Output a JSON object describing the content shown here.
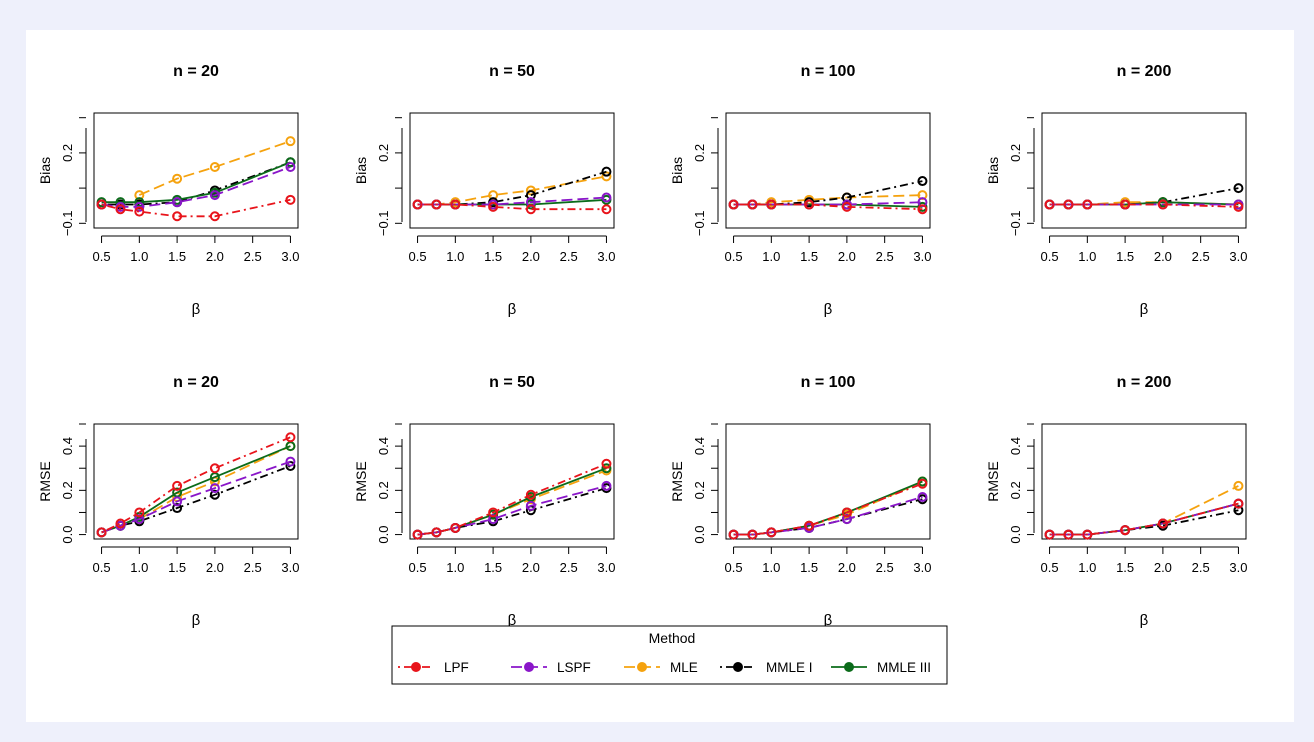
{
  "chart_data": {
    "type": "line",
    "rows": [
      {
        "metric": "Bias",
        "ylabel": "Bias",
        "yticks": [
          "−0.1",
          "0.2"
        ],
        "ytick_values": [
          -0.1,
          0.2
        ],
        "ylim": [
          -0.12,
          0.37
        ],
        "panels": [
          {
            "title": "n = 20",
            "series": [
              {
                "name": "LPF",
                "x": [
                  0.5,
                  0.75,
                  1.0,
                  1.5,
                  2.0,
                  3.0
                ],
                "y": [
                  -0.02,
                  -0.04,
                  -0.05,
                  -0.07,
                  -0.07,
                  0.0
                ]
              },
              {
                "name": "LSPF",
                "x": [
                  0.5,
                  0.75,
                  1.0,
                  1.5,
                  2.0,
                  3.0
                ],
                "y": [
                  -0.02,
                  -0.03,
                  -0.03,
                  -0.01,
                  0.02,
                  0.14
                ]
              },
              {
                "name": "MLE",
                "x": [
                  1.0,
                  1.5,
                  2.0,
                  3.0
                ],
                "y": [
                  0.02,
                  0.09,
                  0.14,
                  0.25
                ]
              },
              {
                "name": "MMLE I",
                "x": [
                  0.5,
                  0.75,
                  1.0,
                  1.5,
                  2.0,
                  3.0
                ],
                "y": [
                  -0.02,
                  -0.02,
                  -0.02,
                  -0.01,
                  0.04,
                  0.16
                ]
              },
              {
                "name": "MMLE III",
                "x": [
                  0.5,
                  0.75,
                  1.0,
                  1.5,
                  2.0,
                  3.0
                ],
                "y": [
                  -0.01,
                  -0.01,
                  -0.01,
                  0.0,
                  0.03,
                  0.16
                ]
              }
            ]
          },
          {
            "title": "n = 50",
            "series": [
              {
                "name": "LPF",
                "x": [
                  0.5,
                  0.75,
                  1.0,
                  1.5,
                  2.0,
                  3.0
                ],
                "y": [
                  -0.02,
                  -0.02,
                  -0.02,
                  -0.03,
                  -0.04,
                  -0.04
                ]
              },
              {
                "name": "LSPF",
                "x": [
                  0.5,
                  0.75,
                  1.0,
                  1.5,
                  2.0,
                  3.0
                ],
                "y": [
                  -0.02,
                  -0.02,
                  -0.02,
                  -0.02,
                  -0.01,
                  0.01
                ]
              },
              {
                "name": "MLE",
                "x": [
                  0.5,
                  0.75,
                  1.0,
                  1.5,
                  2.0,
                  3.0
                ],
                "y": [
                  -0.02,
                  -0.02,
                  -0.01,
                  0.02,
                  0.04,
                  0.1
                ]
              },
              {
                "name": "MMLE I",
                "x": [
                  0.5,
                  0.75,
                  1.0,
                  1.5,
                  2.0,
                  3.0
                ],
                "y": [
                  -0.02,
                  -0.02,
                  -0.02,
                  -0.01,
                  0.02,
                  0.12
                ]
              },
              {
                "name": "MMLE III",
                "x": [
                  0.5,
                  0.75,
                  1.0,
                  1.5,
                  2.0,
                  3.0
                ],
                "y": [
                  -0.02,
                  -0.02,
                  -0.02,
                  -0.02,
                  -0.02,
                  0.0
                ]
              }
            ]
          },
          {
            "title": "n = 100",
            "series": [
              {
                "name": "LPF",
                "x": [
                  0.5,
                  0.75,
                  1.0,
                  1.5,
                  2.0,
                  3.0
                ],
                "y": [
                  -0.02,
                  -0.02,
                  -0.02,
                  -0.02,
                  -0.03,
                  -0.04
                ]
              },
              {
                "name": "LSPF",
                "x": [
                  0.5,
                  0.75,
                  1.0,
                  1.5,
                  2.0,
                  3.0
                ],
                "y": [
                  -0.02,
                  -0.02,
                  -0.02,
                  -0.02,
                  -0.02,
                  -0.01
                ]
              },
              {
                "name": "MLE",
                "x": [
                  0.5,
                  0.75,
                  1.0,
                  1.5,
                  2.0,
                  3.0
                ],
                "y": [
                  -0.02,
                  -0.02,
                  -0.01,
                  0.0,
                  0.01,
                  0.02
                ]
              },
              {
                "name": "MMLE I",
                "x": [
                  0.5,
                  0.75,
                  1.0,
                  1.5,
                  2.0,
                  3.0
                ],
                "y": [
                  -0.02,
                  -0.02,
                  -0.02,
                  -0.01,
                  0.01,
                  0.08
                ]
              },
              {
                "name": "MMLE III",
                "x": [
                  0.5,
                  0.75,
                  1.0,
                  1.5,
                  2.0,
                  3.0
                ],
                "y": [
                  -0.02,
                  -0.02,
                  -0.02,
                  -0.02,
                  -0.02,
                  -0.03
                ]
              }
            ]
          },
          {
            "title": "n = 200",
            "series": [
              {
                "name": "LPF",
                "x": [
                  0.5,
                  0.75,
                  1.0,
                  1.5,
                  2.0,
                  3.0
                ],
                "y": [
                  -0.02,
                  -0.02,
                  -0.02,
                  -0.02,
                  -0.02,
                  -0.03
                ]
              },
              {
                "name": "LSPF",
                "x": [
                  0.5,
                  0.75,
                  1.0,
                  1.5,
                  2.0,
                  3.0
                ],
                "y": [
                  -0.02,
                  -0.02,
                  -0.02,
                  -0.02,
                  -0.02,
                  -0.02
                ]
              },
              {
                "name": "MLE",
                "x": [
                  0.5,
                  0.75,
                  1.0,
                  1.5,
                  2.0,
                  3.0
                ],
                "y": [
                  -0.02,
                  -0.02,
                  -0.02,
                  -0.01,
                  -0.01,
                  -0.02
                ]
              },
              {
                "name": "MMLE I",
                "x": [
                  0.5,
                  0.75,
                  1.0,
                  1.5,
                  2.0,
                  3.0
                ],
                "y": [
                  -0.02,
                  -0.02,
                  -0.02,
                  -0.02,
                  -0.01,
                  0.05
                ]
              },
              {
                "name": "MMLE III",
                "x": [
                  0.5,
                  0.75,
                  1.0,
                  1.5,
                  2.0,
                  3.0
                ],
                "y": [
                  -0.02,
                  -0.02,
                  -0.02,
                  -0.02,
                  -0.01,
                  -0.02
                ]
              }
            ]
          }
        ]
      },
      {
        "metric": "RMSE",
        "ylabel": "RMSE",
        "yticks": [
          "0.0",
          "0.2",
          "0.4"
        ],
        "ytick_values": [
          0.0,
          0.2,
          0.4
        ],
        "ylim": [
          -0.02,
          0.5
        ],
        "panels": [
          {
            "title": "n = 20",
            "series": [
              {
                "name": "LPF",
                "x": [
                  0.5,
                  0.75,
                  1.0,
                  1.5,
                  2.0,
                  3.0
                ],
                "y": [
                  0.01,
                  0.05,
                  0.1,
                  0.22,
                  0.3,
                  0.44
                ]
              },
              {
                "name": "LSPF",
                "x": [
                  0.5,
                  0.75,
                  1.0,
                  1.5,
                  2.0,
                  3.0
                ],
                "y": [
                  0.01,
                  0.04,
                  0.07,
                  0.15,
                  0.21,
                  0.33
                ]
              },
              {
                "name": "MLE",
                "x": [
                  1.0,
                  1.5,
                  2.0,
                  3.0
                ],
                "y": [
                  0.07,
                  0.17,
                  0.24,
                  0.4
                ]
              },
              {
                "name": "MMLE I",
                "x": [
                  0.5,
                  0.75,
                  1.0,
                  1.5,
                  2.0,
                  3.0
                ],
                "y": [
                  0.01,
                  0.04,
                  0.06,
                  0.12,
                  0.18,
                  0.31
                ]
              },
              {
                "name": "MMLE III",
                "x": [
                  0.5,
                  0.75,
                  1.0,
                  1.5,
                  2.0,
                  3.0
                ],
                "y": [
                  0.01,
                  0.04,
                  0.08,
                  0.19,
                  0.26,
                  0.4
                ]
              }
            ]
          },
          {
            "title": "n = 50",
            "series": [
              {
                "name": "LPF",
                "x": [
                  0.5,
                  0.75,
                  1.0,
                  1.5,
                  2.0,
                  3.0
                ],
                "y": [
                  0.0,
                  0.01,
                  0.03,
                  0.1,
                  0.18,
                  0.32
                ]
              },
              {
                "name": "LSPF",
                "x": [
                  0.5,
                  0.75,
                  1.0,
                  1.5,
                  2.0,
                  3.0
                ],
                "y": [
                  0.0,
                  0.01,
                  0.03,
                  0.07,
                  0.13,
                  0.22
                ]
              },
              {
                "name": "MLE",
                "x": [
                  0.5,
                  0.75,
                  1.0,
                  1.5,
                  2.0,
                  3.0
                ],
                "y": [
                  0.0,
                  0.01,
                  0.03,
                  0.09,
                  0.16,
                  0.29
                ]
              },
              {
                "name": "MMLE I",
                "x": [
                  0.5,
                  0.75,
                  1.0,
                  1.5,
                  2.0,
                  3.0
                ],
                "y": [
                  0.0,
                  0.01,
                  0.03,
                  0.06,
                  0.11,
                  0.21
                ]
              },
              {
                "name": "MMLE III",
                "x": [
                  0.5,
                  0.75,
                  1.0,
                  1.5,
                  2.0,
                  3.0
                ],
                "y": [
                  0.0,
                  0.01,
                  0.03,
                  0.09,
                  0.17,
                  0.3
                ]
              }
            ]
          },
          {
            "title": "n = 100",
            "series": [
              {
                "name": "LPF",
                "x": [
                  0.5,
                  0.75,
                  1.0,
                  1.5,
                  2.0,
                  3.0
                ],
                "y": [
                  0.0,
                  0.0,
                  0.01,
                  0.04,
                  0.1,
                  0.23
                ]
              },
              {
                "name": "LSPF",
                "x": [
                  0.5,
                  0.75,
                  1.0,
                  1.5,
                  2.0,
                  3.0
                ],
                "y": [
                  0.0,
                  0.0,
                  0.01,
                  0.03,
                  0.07,
                  0.17
                ]
              },
              {
                "name": "MLE",
                "x": [
                  0.5,
                  0.75,
                  1.0,
                  1.5,
                  2.0,
                  3.0
                ],
                "y": [
                  0.0,
                  0.0,
                  0.01,
                  0.04,
                  0.09,
                  0.24
                ]
              },
              {
                "name": "MMLE I",
                "x": [
                  0.5,
                  0.75,
                  1.0,
                  1.5,
                  2.0,
                  3.0
                ],
                "y": [
                  0.0,
                  0.0,
                  0.01,
                  0.03,
                  0.07,
                  0.16
                ]
              },
              {
                "name": "MMLE III",
                "x": [
                  0.5,
                  0.75,
                  1.0,
                  1.5,
                  2.0,
                  3.0
                ],
                "y": [
                  0.0,
                  0.0,
                  0.01,
                  0.04,
                  0.1,
                  0.24
                ]
              }
            ]
          },
          {
            "title": "n = 200",
            "series": [
              {
                "name": "LPF",
                "x": [
                  0.5,
                  0.75,
                  1.0,
                  1.5,
                  2.0,
                  3.0
                ],
                "y": [
                  0.0,
                  0.0,
                  0.0,
                  0.02,
                  0.05,
                  0.14
                ]
              },
              {
                "name": "LSPF",
                "x": [
                  0.5,
                  0.75,
                  1.0,
                  1.5,
                  2.0,
                  3.0
                ],
                "y": [
                  0.0,
                  0.0,
                  0.0,
                  0.02,
                  0.05,
                  0.14
                ]
              },
              {
                "name": "MLE",
                "x": [
                  0.5,
                  0.75,
                  1.0,
                  1.5,
                  2.0,
                  3.0
                ],
                "y": [
                  0.0,
                  0.0,
                  0.0,
                  0.02,
                  0.05,
                  0.22
                ]
              },
              {
                "name": "MMLE I",
                "x": [
                  0.5,
                  0.75,
                  1.0,
                  1.5,
                  2.0,
                  3.0
                ],
                "y": [
                  0.0,
                  0.0,
                  0.0,
                  0.02,
                  0.04,
                  0.11
                ]
              },
              {
                "name": "MMLE III",
                "x": [
                  0.5,
                  0.75,
                  1.0,
                  1.5,
                  2.0,
                  3.0
                ],
                "y": [
                  0.0,
                  0.0,
                  0.0,
                  0.02,
                  0.05,
                  0.14
                ]
              }
            ]
          }
        ]
      }
    ],
    "xlabel": "β",
    "xticks": [
      "0.5",
      "1.0",
      "1.5",
      "2.0",
      "2.5",
      "3.0"
    ],
    "xtick_values": [
      0.5,
      1.0,
      1.5,
      2.0,
      2.5,
      3.0
    ],
    "xlim": [
      0.4,
      3.1
    ],
    "legend": {
      "title": "Method",
      "placement": "bottom-center",
      "entries": [
        "LPF",
        "LSPF",
        "MLE",
        "MMLE I",
        "MMLE III"
      ]
    },
    "styles": {
      "LPF": {
        "color": "#e8141b",
        "dash": "dotdash"
      },
      "LSPF": {
        "color": "#8a16c9",
        "dash": "longdash"
      },
      "MLE": {
        "color": "#f5a20e",
        "dash": "longdash"
      },
      "MMLE I": {
        "color": "#000000",
        "dash": "dotdash"
      },
      "MMLE III": {
        "color": "#0b6b1a",
        "dash": "solid"
      }
    },
    "draw_order": [
      "MLE",
      "MMLE I",
      "MMLE III",
      "LSPF",
      "LPF"
    ]
  }
}
